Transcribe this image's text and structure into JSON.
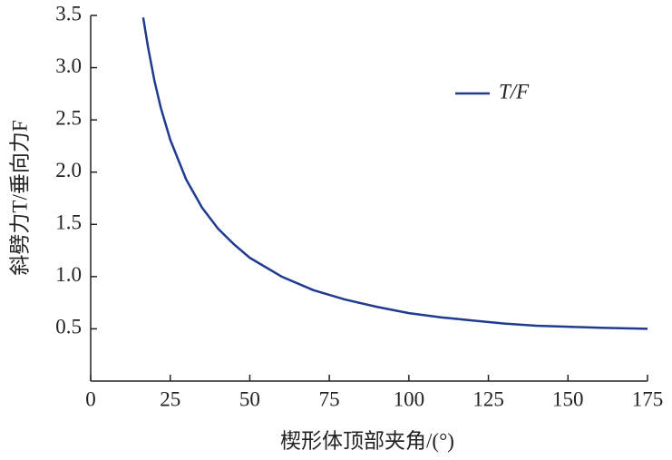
{
  "chart_data": {
    "type": "line",
    "x_label": "楔形体顶部夹角/(°)",
    "y_label": "斜劈力T/垂向力F",
    "x": [
      16.5,
      18,
      20,
      22,
      25,
      30,
      35,
      40,
      45,
      50,
      60,
      70,
      80,
      90,
      100,
      110,
      120,
      130,
      140,
      150,
      160,
      175
    ],
    "series": [
      {
        "name": "T/F",
        "color": "#1f3a8f",
        "values": [
          3.48,
          3.2,
          2.88,
          2.62,
          2.31,
          1.93,
          1.66,
          1.46,
          1.31,
          1.18,
          1.0,
          0.87,
          0.78,
          0.71,
          0.65,
          0.61,
          0.58,
          0.55,
          0.53,
          0.52,
          0.51,
          0.5
        ]
      }
    ],
    "xlim": [
      0,
      175
    ],
    "xticks": [
      0,
      25,
      50,
      75,
      100,
      125,
      150,
      175
    ],
    "ylim": [
      0,
      3.5
    ],
    "yticks": [
      0.5,
      {
        "value": 1,
        "label": "1.0"
      },
      1.5,
      {
        "value": 2,
        "label": "2.0"
      },
      2.5,
      {
        "value": 3,
        "label": "3.0"
      },
      3.5
    ],
    "grid": false,
    "legend": "upper right"
  }
}
